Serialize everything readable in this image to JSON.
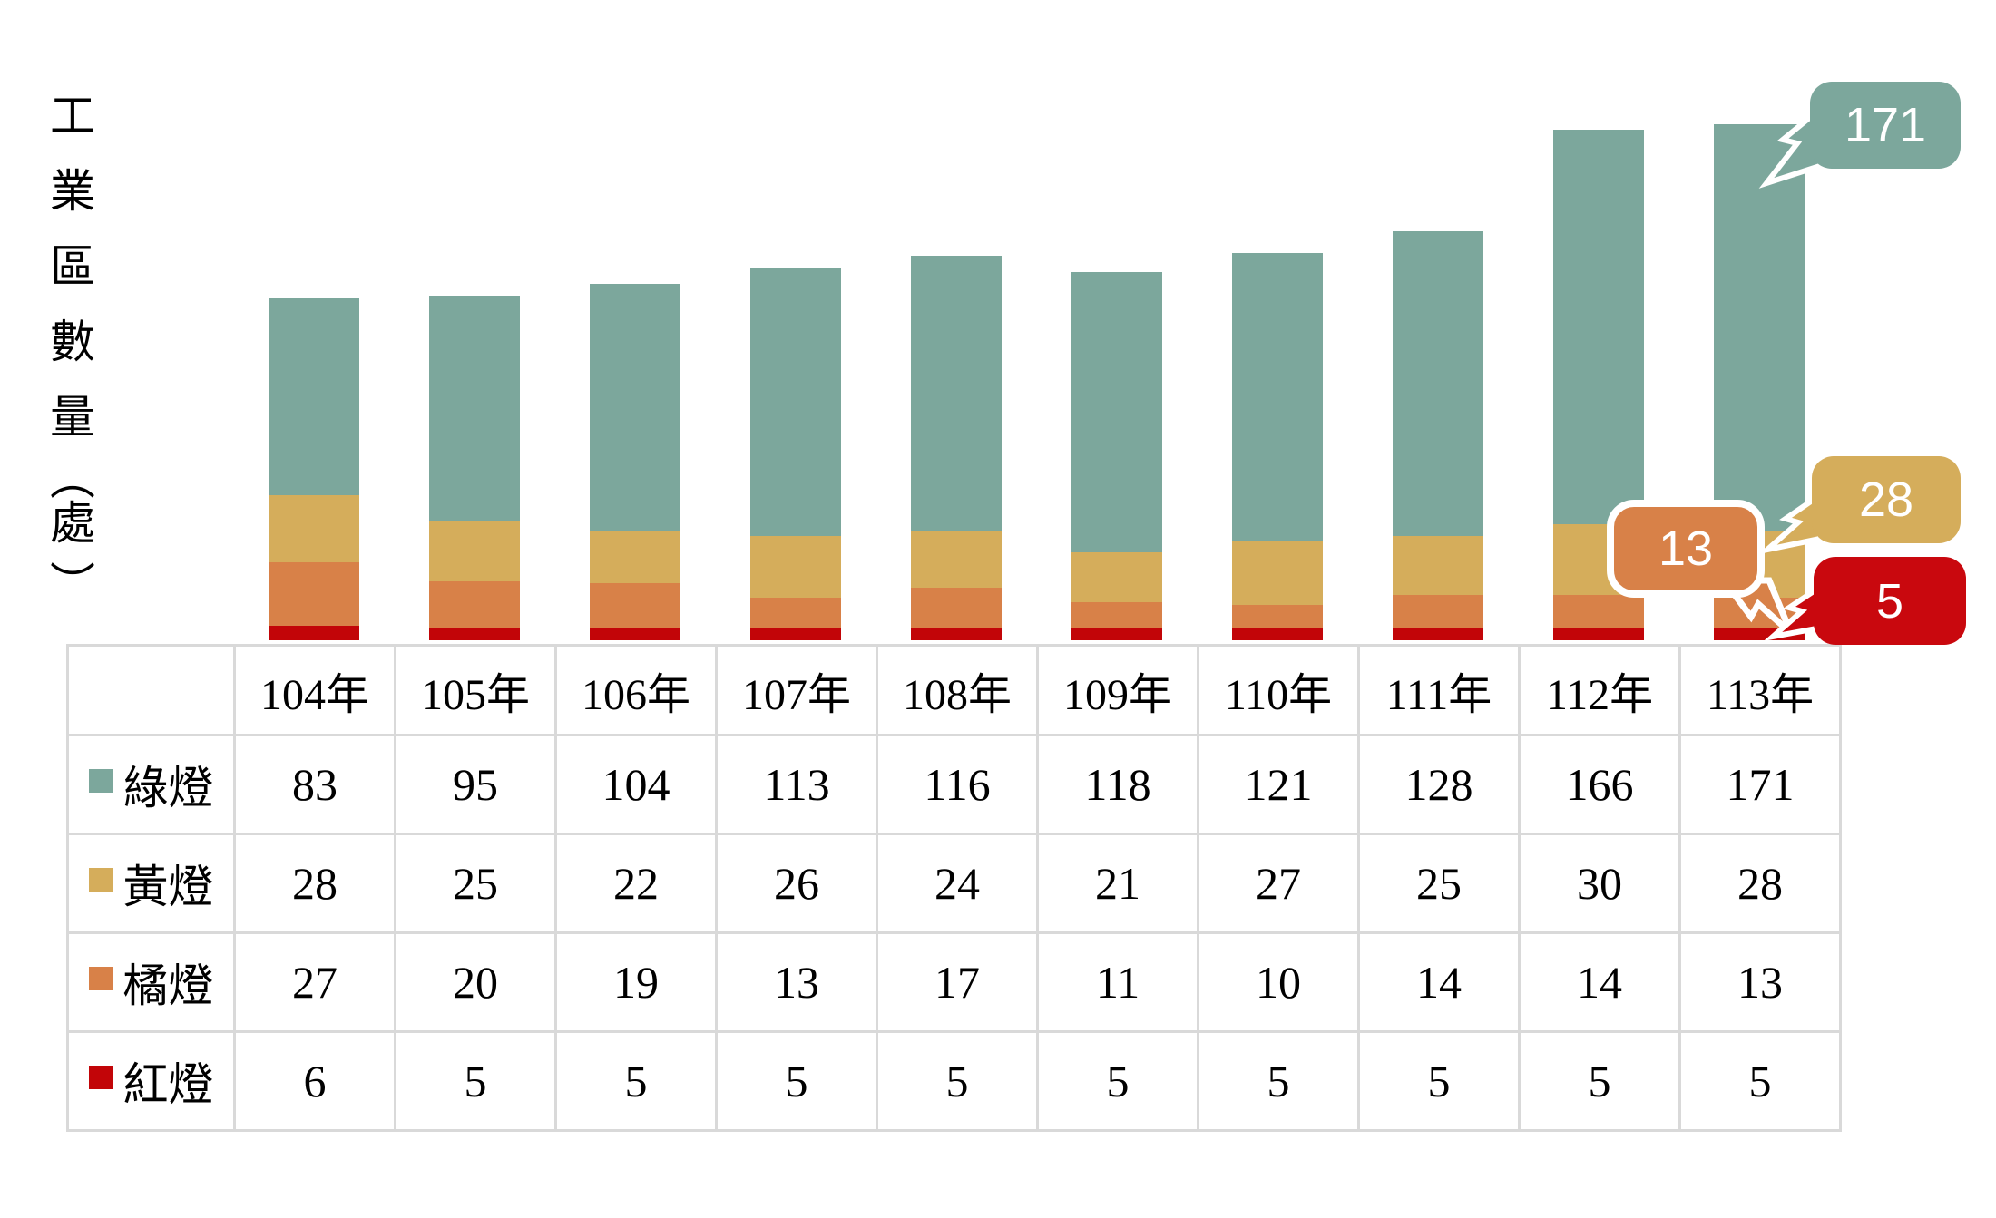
{
  "page": {
    "background": "#FFFFFF"
  },
  "chart_data": {
    "type": "bar",
    "stacked": true,
    "title": "",
    "ylabel": "工業區數量(處)",
    "xlabel": "",
    "unit_suffix_year": "年",
    "gridlines": false,
    "legend_position": "table-left-column",
    "categories": [
      "104年",
      "105年",
      "106年",
      "107年",
      "108年",
      "109年",
      "110年",
      "111年",
      "112年",
      "113年"
    ],
    "series": [
      {
        "name": "綠燈",
        "color": "#7CA79C",
        "values": [
          83,
          95,
          104,
          113,
          116,
          118,
          121,
          128,
          166,
          171
        ]
      },
      {
        "name": "黃燈",
        "color": "#D5AD5B",
        "values": [
          28,
          25,
          22,
          26,
          24,
          21,
          27,
          25,
          30,
          28
        ]
      },
      {
        "name": "橘燈",
        "color": "#D88148",
        "values": [
          27,
          20,
          19,
          13,
          17,
          11,
          10,
          14,
          14,
          13
        ]
      },
      {
        "name": "紅燈",
        "color": "#C20508",
        "values": [
          6,
          5,
          5,
          5,
          5,
          5,
          5,
          5,
          5,
          5
        ]
      }
    ],
    "stack_order_bottom_to_top": [
      "紅燈",
      "橘燈",
      "黃燈",
      "綠燈"
    ],
    "annotations": [
      {
        "label": "171",
        "series": "綠燈",
        "category": "113年",
        "color": "#7CA79C",
        "text_color": "#FFFFFF",
        "border": "none"
      },
      {
        "label": "28",
        "series": "黃燈",
        "category": "113年",
        "color": "#D5AD5B",
        "text_color": "#FFFFFF",
        "border": "none"
      },
      {
        "label": "13",
        "series": "橘燈",
        "category": "113年",
        "color": "#D88148",
        "text_color": "#FFFFFF",
        "border": "#FFFFFF"
      },
      {
        "label": "5",
        "series": "紅燈",
        "category": "113年",
        "color": "#C9080E",
        "text_color": "#FFFFFF",
        "border": "none"
      }
    ],
    "table_grid_color": "#D9D9D9",
    "text_color": "#000000"
  }
}
